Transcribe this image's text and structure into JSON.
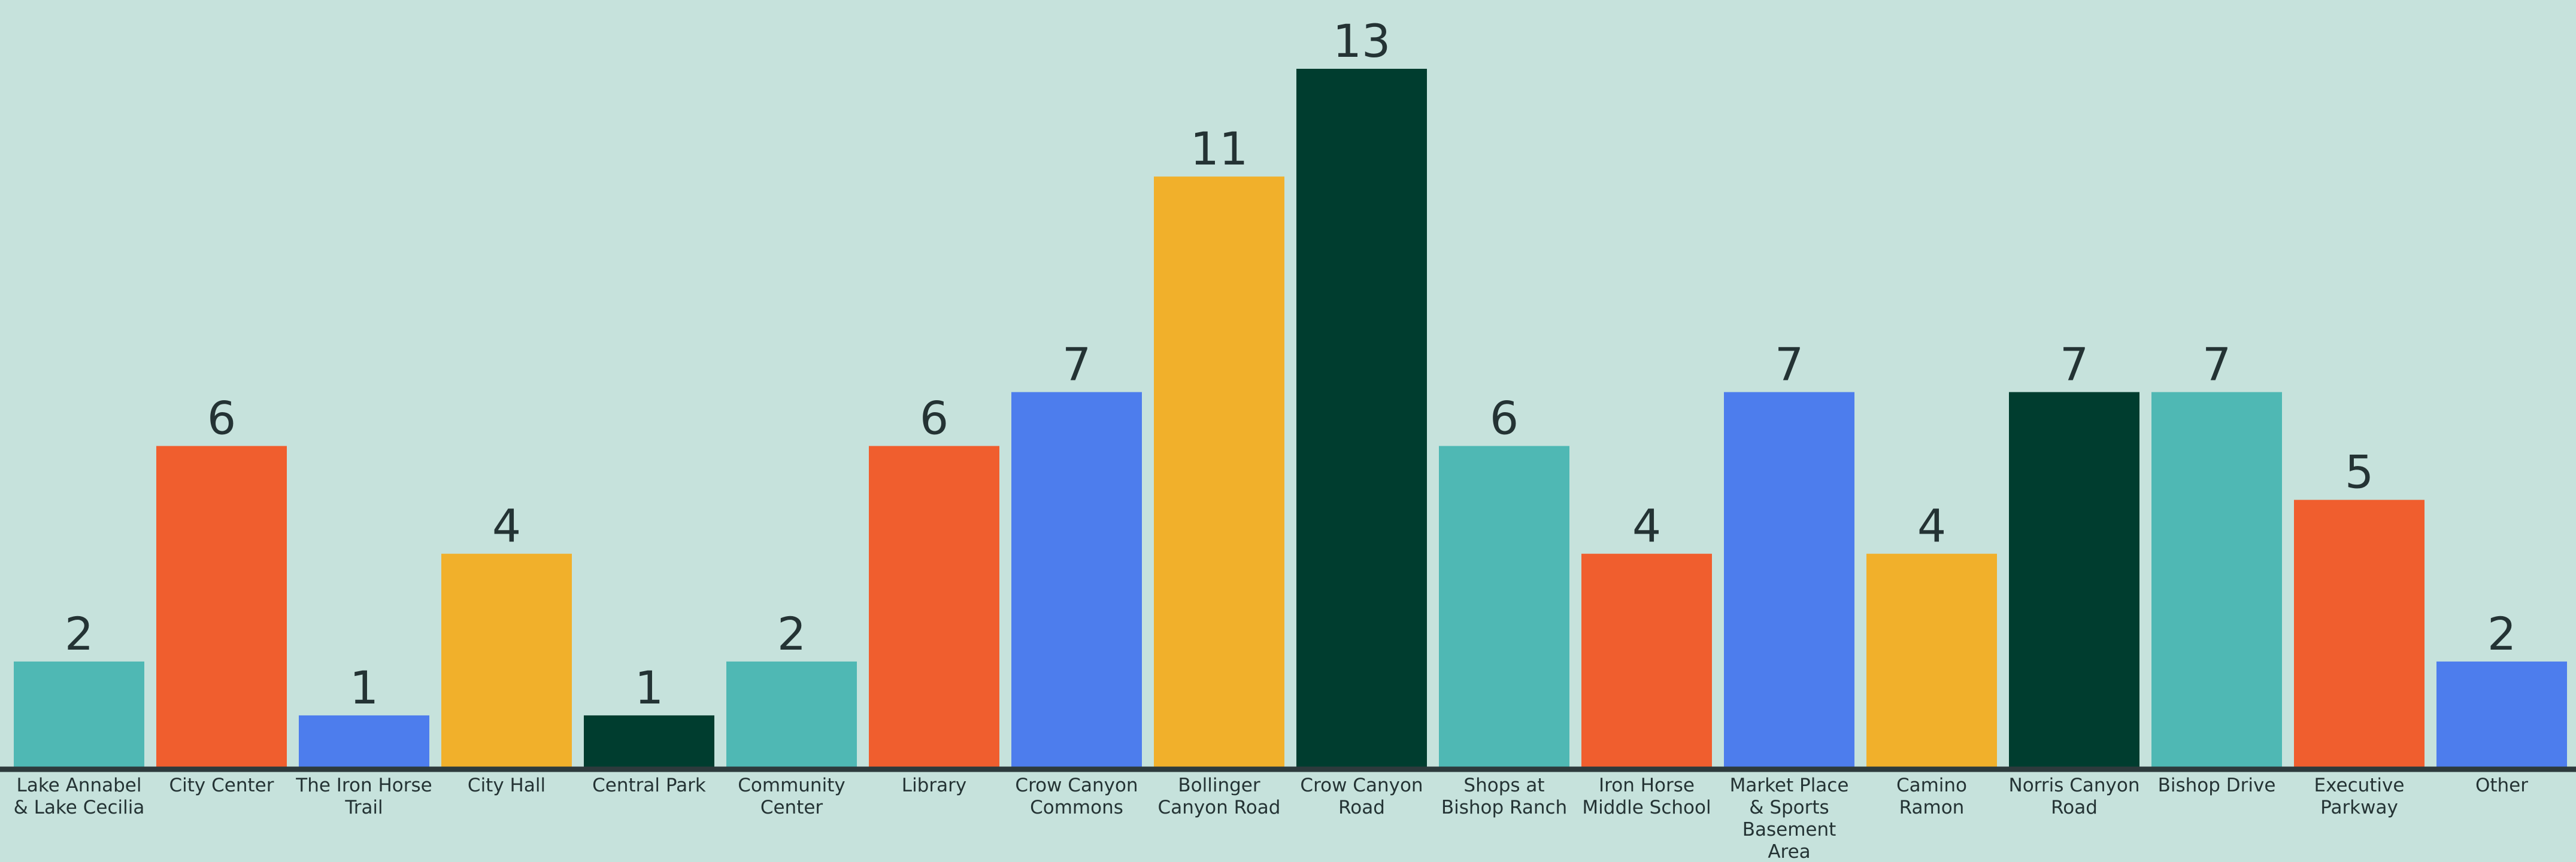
{
  "chart_data": {
    "type": "bar",
    "title": "",
    "xlabel": "",
    "ylabel": "",
    "ylim": [
      0,
      13
    ],
    "grid": false,
    "legend": "none",
    "categories": [
      "Lake Annabel & Lake Cecilia",
      "City Center",
      "The Iron Horse Trail",
      "City Hall",
      "Central Park",
      "Community Center",
      "Library",
      "Crow Canyon Commons",
      "Bollinger Canyon Road",
      "Crow Canyon Road",
      "Shops at Bishop Ranch",
      "Iron Horse Middle School",
      "Market Place & Sports Basement Area",
      "Camino Ramon",
      "Norris Canyon Road",
      "Bishop Drive",
      "Executive Parkway",
      "Other"
    ],
    "tick_label_lines": [
      [
        "Lake Annabel",
        "& Lake Cecilia"
      ],
      [
        "City Center"
      ],
      [
        "The Iron Horse",
        "Trail"
      ],
      [
        "City Hall"
      ],
      [
        "Central Park"
      ],
      [
        "Community",
        "Center"
      ],
      [
        "Library"
      ],
      [
        "Crow Canyon",
        "Commons"
      ],
      [
        "Bollinger",
        "Canyon Road"
      ],
      [
        "Crow Canyon",
        "Road"
      ],
      [
        "Shops at",
        "Bishop Ranch"
      ],
      [
        "Iron Horse",
        "Middle School"
      ],
      [
        "Market Place",
        "& Sports",
        "Basement",
        "Area"
      ],
      [
        "Camino",
        "Ramon"
      ],
      [
        "Norris Canyon",
        "Road"
      ],
      [
        "Bishop Drive"
      ],
      [
        "Executive",
        "Parkway"
      ],
      [
        "Other"
      ]
    ],
    "values": [
      2,
      6,
      1,
      4,
      1,
      2,
      6,
      7,
      11,
      13,
      6,
      4,
      7,
      4,
      7,
      7,
      5,
      2
    ],
    "value_labels": [
      "2",
      "6",
      "1",
      "4",
      "1",
      "2",
      "6",
      "7",
      "11",
      "13",
      "6",
      "4",
      "7",
      "4",
      "7",
      "7",
      "5",
      "2"
    ],
    "bar_colors": [
      "#4fb8b4",
      "#f05e2e",
      "#4d7ded",
      "#f1b02b",
      "#003d2f",
      "#4fb8b4",
      "#f05e2e",
      "#4d7ded",
      "#f1b02b",
      "#003d2f",
      "#4fb8b4",
      "#f05e2e",
      "#4d7ded",
      "#f1b02b",
      "#003d2f",
      "#4fb8b4",
      "#f05e2e",
      "#4d7ded"
    ]
  },
  "colors": {
    "background": "#c6e2dc",
    "text": "#243334",
    "axis": "#2d3a3c"
  }
}
